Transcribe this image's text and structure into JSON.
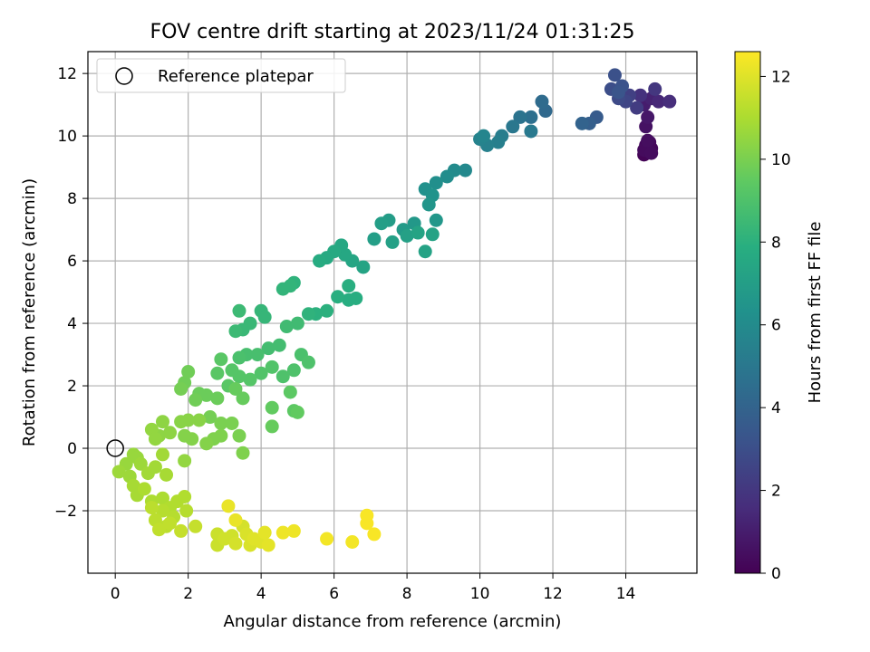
{
  "chart_data": {
    "type": "scatter",
    "title": "FOV centre drift starting at 2023/11/24 01:31:25",
    "xlabel": "Angular distance from reference (arcmin)",
    "ylabel": "Rotation from reference (arcmin)",
    "xlim": [
      -0.75,
      15.95
    ],
    "ylim": [
      -4.0,
      12.7
    ],
    "xticks": [
      0,
      2,
      4,
      6,
      8,
      10,
      12,
      14
    ],
    "xtick_labels": [
      "0",
      "2",
      "4",
      "6",
      "8",
      "10",
      "12",
      "14"
    ],
    "yticks": [
      -2,
      0,
      2,
      4,
      6,
      8,
      10,
      12
    ],
    "ytick_labels": [
      "−2",
      "0",
      "2",
      "4",
      "6",
      "8",
      "10",
      "12"
    ],
    "grid": true,
    "legend": {
      "position": "top-left",
      "label": "Reference platepar"
    },
    "reference_point": {
      "x": 0,
      "y": 0
    },
    "colorbar": {
      "label": "Hours from first FF file",
      "colormap": "viridis",
      "range": [
        0,
        12.6
      ],
      "ticks": [
        0,
        2,
        4,
        6,
        8,
        10,
        12
      ],
      "tick_labels": [
        "0",
        "2",
        "4",
        "6",
        "8",
        "10",
        "12"
      ]
    },
    "series": [
      {
        "points": [
          [
            14.5,
            9.4,
            0.1
          ],
          [
            14.6,
            9.5,
            0.15
          ],
          [
            14.7,
            9.6,
            0.2
          ],
          [
            14.55,
            9.7,
            0.25
          ],
          [
            14.65,
            9.8,
            0.3
          ],
          [
            14.5,
            9.55,
            0.35
          ],
          [
            14.7,
            9.45,
            0.4
          ],
          [
            14.6,
            9.85,
            0.45
          ],
          [
            14.55,
            10.3,
            0.6
          ],
          [
            14.6,
            10.6,
            0.8
          ],
          [
            14.5,
            11.0,
            1.0
          ],
          [
            14.7,
            11.2,
            1.2
          ],
          [
            14.9,
            11.1,
            1.4
          ],
          [
            15.2,
            11.1,
            1.6
          ],
          [
            14.4,
            11.3,
            1.8
          ],
          [
            14.8,
            11.5,
            2.0
          ],
          [
            14.3,
            10.9,
            2.2
          ],
          [
            14.1,
            11.3,
            2.4
          ],
          [
            14.0,
            11.1,
            2.6
          ],
          [
            13.8,
            11.2,
            2.8
          ],
          [
            13.6,
            11.5,
            3.0
          ],
          [
            13.7,
            11.95,
            3.1
          ],
          [
            13.9,
            11.6,
            3.2
          ],
          [
            13.8,
            11.4,
            3.3
          ],
          [
            13.2,
            10.6,
            3.6
          ],
          [
            13.0,
            10.4,
            3.8
          ],
          [
            12.8,
            10.4,
            4.0
          ],
          [
            11.8,
            10.8,
            4.3
          ],
          [
            11.7,
            11.1,
            4.4
          ],
          [
            11.4,
            10.6,
            4.6
          ],
          [
            11.1,
            10.6,
            4.8
          ],
          [
            10.9,
            10.3,
            5.0
          ],
          [
            11.4,
            10.15,
            5.1
          ],
          [
            10.6,
            10.0,
            5.3
          ],
          [
            10.5,
            9.8,
            5.4
          ],
          [
            10.2,
            9.7,
            5.5
          ],
          [
            10.0,
            9.9,
            5.6
          ],
          [
            10.1,
            10.0,
            5.7
          ],
          [
            9.6,
            8.9,
            5.9
          ],
          [
            9.3,
            8.9,
            6.0
          ],
          [
            9.1,
            8.7,
            6.1
          ],
          [
            8.8,
            8.5,
            6.2
          ],
          [
            8.5,
            8.3,
            6.3
          ],
          [
            8.7,
            8.1,
            6.4
          ],
          [
            8.6,
            7.8,
            6.5
          ],
          [
            8.8,
            7.3,
            6.6
          ],
          [
            8.2,
            7.2,
            6.7
          ],
          [
            7.9,
            7.0,
            6.8
          ],
          [
            7.5,
            7.3,
            6.9
          ],
          [
            7.3,
            7.2,
            7.0
          ],
          [
            7.1,
            6.7,
            7.0
          ],
          [
            7.6,
            6.6,
            7.1
          ],
          [
            8.0,
            6.8,
            7.1
          ],
          [
            8.5,
            6.3,
            7.2
          ],
          [
            8.7,
            6.85,
            7.2
          ],
          [
            8.3,
            6.9,
            7.3
          ],
          [
            6.8,
            5.8,
            7.3
          ],
          [
            6.5,
            6.0,
            7.4
          ],
          [
            6.3,
            6.2,
            7.5
          ],
          [
            6.2,
            6.5,
            7.5
          ],
          [
            6.0,
            6.3,
            7.6
          ],
          [
            5.8,
            6.1,
            7.6
          ],
          [
            5.6,
            6.0,
            7.7
          ],
          [
            6.6,
            4.8,
            7.8
          ],
          [
            6.4,
            4.75,
            7.8
          ],
          [
            6.1,
            4.85,
            7.9
          ],
          [
            6.4,
            5.2,
            7.9
          ],
          [
            5.8,
            4.4,
            8.0
          ],
          [
            5.5,
            4.3,
            8.0
          ],
          [
            5.3,
            4.3,
            8.1
          ],
          [
            4.9,
            5.3,
            8.1
          ],
          [
            4.8,
            5.2,
            8.2
          ],
          [
            4.6,
            5.1,
            8.2
          ],
          [
            4.0,
            4.4,
            8.3
          ],
          [
            4.1,
            4.2,
            8.3
          ],
          [
            3.7,
            4.0,
            8.4
          ],
          [
            3.5,
            3.8,
            8.4
          ],
          [
            3.4,
            4.4,
            8.5
          ],
          [
            3.3,
            3.75,
            8.5
          ],
          [
            5.0,
            4.0,
            8.6
          ],
          [
            4.7,
            3.9,
            8.6
          ],
          [
            4.5,
            3.3,
            8.7
          ],
          [
            4.2,
            3.2,
            8.7
          ],
          [
            3.9,
            3.0,
            8.8
          ],
          [
            3.6,
            3.0,
            8.8
          ],
          [
            3.4,
            2.9,
            8.9
          ],
          [
            5.1,
            3.0,
            8.9
          ],
          [
            5.3,
            2.75,
            9.0
          ],
          [
            4.9,
            2.5,
            9.0
          ],
          [
            4.6,
            2.3,
            9.0
          ],
          [
            4.3,
            2.6,
            9.1
          ],
          [
            4.0,
            2.4,
            9.1
          ],
          [
            3.7,
            2.2,
            9.2
          ],
          [
            3.4,
            2.3,
            9.2
          ],
          [
            3.2,
            2.5,
            9.2
          ],
          [
            2.9,
            2.85,
            9.3
          ],
          [
            2.8,
            2.4,
            9.3
          ],
          [
            3.1,
            2.0,
            9.3
          ],
          [
            4.8,
            1.8,
            9.4
          ],
          [
            4.9,
            1.2,
            9.4
          ],
          [
            5.0,
            1.15,
            9.5
          ],
          [
            4.3,
            1.3,
            9.5
          ],
          [
            4.3,
            0.7,
            9.6
          ],
          [
            3.5,
            1.6,
            9.6
          ],
          [
            3.3,
            1.9,
            9.6
          ],
          [
            2.8,
            1.6,
            9.7
          ],
          [
            2.5,
            1.7,
            9.7
          ],
          [
            2.3,
            1.75,
            9.7
          ],
          [
            2.2,
            1.55,
            9.8
          ],
          [
            1.9,
            2.1,
            9.8
          ],
          [
            2.0,
            2.45,
            9.8
          ],
          [
            1.8,
            1.9,
            9.9
          ],
          [
            2.6,
            1.0,
            9.9
          ],
          [
            2.9,
            0.8,
            10.0
          ],
          [
            3.2,
            0.8,
            10.0
          ],
          [
            3.4,
            0.4,
            10.0
          ],
          [
            3.5,
            -0.15,
            10.1
          ],
          [
            2.9,
            0.4,
            10.1
          ],
          [
            2.7,
            0.3,
            10.1
          ],
          [
            2.5,
            0.15,
            10.2
          ],
          [
            2.1,
            0.3,
            10.2
          ],
          [
            1.9,
            0.4,
            10.2
          ],
          [
            2.3,
            0.9,
            10.3
          ],
          [
            2.0,
            0.9,
            10.3
          ],
          [
            1.8,
            0.85,
            10.3
          ],
          [
            1.5,
            0.5,
            10.4
          ],
          [
            1.3,
            0.85,
            10.4
          ],
          [
            1.2,
            0.4,
            10.4
          ],
          [
            1.0,
            0.6,
            10.5
          ],
          [
            1.1,
            0.3,
            10.5
          ],
          [
            1.9,
            -0.4,
            10.5
          ],
          [
            0.5,
            -0.2,
            10.6
          ],
          [
            0.6,
            -0.3,
            10.6
          ],
          [
            0.3,
            -0.5,
            10.6
          ],
          [
            0.1,
            -0.75,
            10.7
          ],
          [
            0.4,
            -0.9,
            10.7
          ],
          [
            0.7,
            -0.5,
            10.7
          ],
          [
            0.9,
            -0.8,
            10.8
          ],
          [
            1.3,
            -0.2,
            10.8
          ],
          [
            1.1,
            -0.6,
            10.8
          ],
          [
            1.4,
            -0.85,
            10.9
          ],
          [
            0.5,
            -1.2,
            10.9
          ],
          [
            0.6,
            -1.5,
            10.9
          ],
          [
            0.8,
            -1.3,
            11.0
          ],
          [
            1.0,
            -1.7,
            11.0
          ],
          [
            1.3,
            -1.6,
            11.0
          ],
          [
            1.5,
            -1.9,
            11.1
          ],
          [
            1.7,
            -1.7,
            11.1
          ],
          [
            1.9,
            -1.55,
            11.1
          ],
          [
            1.95,
            -2.0,
            11.2
          ],
          [
            1.6,
            -2.2,
            11.2
          ],
          [
            1.3,
            -2.0,
            11.2
          ],
          [
            1.1,
            -2.3,
            11.3
          ],
          [
            1.0,
            -1.9,
            11.3
          ],
          [
            1.4,
            -2.5,
            11.3
          ],
          [
            1.2,
            -2.6,
            11.4
          ],
          [
            1.5,
            -2.4,
            11.4
          ],
          [
            1.8,
            -2.65,
            11.5
          ],
          [
            2.2,
            -2.5,
            11.5
          ],
          [
            2.8,
            -2.75,
            11.6
          ],
          [
            2.8,
            -3.1,
            11.6
          ],
          [
            3.0,
            -2.9,
            11.7
          ],
          [
            3.2,
            -2.8,
            11.7
          ],
          [
            3.3,
            -3.05,
            11.8
          ],
          [
            3.5,
            -2.5,
            11.8
          ],
          [
            3.6,
            -2.75,
            11.9
          ],
          [
            3.7,
            -3.1,
            11.9
          ],
          [
            3.8,
            -2.9,
            12.0
          ],
          [
            4.0,
            -3.0,
            12.0
          ],
          [
            4.1,
            -2.7,
            12.1
          ],
          [
            4.2,
            -3.1,
            12.1
          ],
          [
            3.3,
            -2.3,
            12.2
          ],
          [
            3.1,
            -1.85,
            12.2
          ],
          [
            4.6,
            -2.7,
            12.3
          ],
          [
            4.9,
            -2.65,
            12.3
          ],
          [
            5.8,
            -2.9,
            12.4
          ],
          [
            6.5,
            -3.0,
            12.4
          ],
          [
            6.9,
            -2.4,
            12.5
          ],
          [
            7.1,
            -2.75,
            12.5
          ],
          [
            6.9,
            -2.15,
            12.5
          ]
        ]
      }
    ]
  }
}
